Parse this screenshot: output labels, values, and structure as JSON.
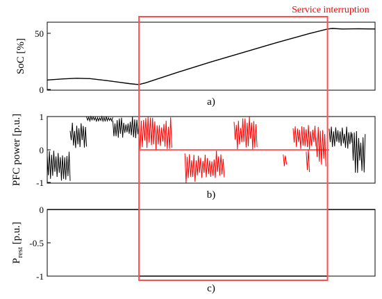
{
  "colors": {
    "accent": "#ff0000",
    "trace": "#000000",
    "frame": "#000000",
    "highlight_box": "#ff4d4d"
  },
  "annotation": {
    "label": "Service interruption",
    "x_start": 0.28,
    "x_end": 0.855
  },
  "chart_data": [
    {
      "type": "line",
      "panel_label": "a)",
      "ylabel": "SoC [%]",
      "xlim": [
        0,
        1
      ],
      "ylim": [
        0,
        60
      ],
      "yticks": [
        "50",
        "0"
      ],
      "grid": false,
      "series": [
        {
          "x": [
            0,
            0.05,
            0.09,
            0.13,
            0.18,
            0.22,
            0.25,
            0.27,
            0.28,
            0.3,
            0.4,
            0.5,
            0.6,
            0.7,
            0.8,
            0.855,
            0.87,
            0.9,
            0.95,
            1.0
          ],
          "y": [
            9,
            10,
            10.5,
            10.2,
            8.5,
            7,
            5.8,
            5.2,
            5,
            6.5,
            16,
            25,
            33.5,
            42,
            50,
            54,
            54.5,
            54,
            54.2,
            54
          ]
        }
      ]
    },
    {
      "type": "line",
      "panel_label": "b)",
      "ylabel": "PFC power [p.u.]",
      "xlim": [
        0,
        1
      ],
      "ylim": [
        -1,
        1
      ],
      "yticks": [
        "1",
        "0",
        "-1"
      ],
      "grid": false,
      "segments_black": [
        {
          "x0": 0.0,
          "x1": 0.07,
          "lo": -0.95,
          "hi": 0
        },
        {
          "x0": 0.07,
          "x1": 0.12,
          "lo": 0,
          "hi": 0.85
        },
        {
          "x0": 0.12,
          "x1": 0.2,
          "lo": 0.85,
          "hi": 1
        },
        {
          "x0": 0.2,
          "x1": 0.28,
          "lo": 0.3,
          "hi": 1
        },
        {
          "x0": 0.86,
          "x1": 0.93,
          "lo": 0,
          "hi": 0.7
        },
        {
          "x0": 0.93,
          "x1": 0.97,
          "lo": -0.7,
          "hi": 0.6
        }
      ],
      "segments_red": [
        {
          "x0": 0.28,
          "x1": 0.38,
          "lo": 0,
          "hi": 1
        },
        {
          "x0": 0.42,
          "x1": 0.54,
          "lo": -1,
          "hi": 0
        },
        {
          "x0": 0.57,
          "x1": 0.64,
          "lo": 0,
          "hi": 1
        },
        {
          "x0": 0.72,
          "x1": 0.73,
          "lo": -0.55,
          "hi": 0
        },
        {
          "x0": 0.75,
          "x1": 0.82,
          "lo": 0,
          "hi": 0.75
        },
        {
          "x0": 0.79,
          "x1": 0.8,
          "lo": -0.7,
          "hi": 0
        },
        {
          "x0": 0.82,
          "x1": 0.85,
          "lo": -0.6,
          "hi": 0.7
        }
      ]
    },
    {
      "type": "line",
      "panel_label": "c)",
      "ylabel": "P",
      "ylabel_sub": "rest",
      "ylabel_unit": " [p.u.]",
      "xlim": [
        0,
        1
      ],
      "ylim": [
        -1,
        0
      ],
      "yticks": [
        "0",
        "-0.5",
        "-1"
      ],
      "grid": false,
      "series": [
        {
          "x": [
            0,
            0.28,
            0.28,
            0.855,
            0.855,
            1.0
          ],
          "y": [
            0,
            0,
            -1,
            -1,
            0,
            0
          ]
        }
      ]
    }
  ]
}
